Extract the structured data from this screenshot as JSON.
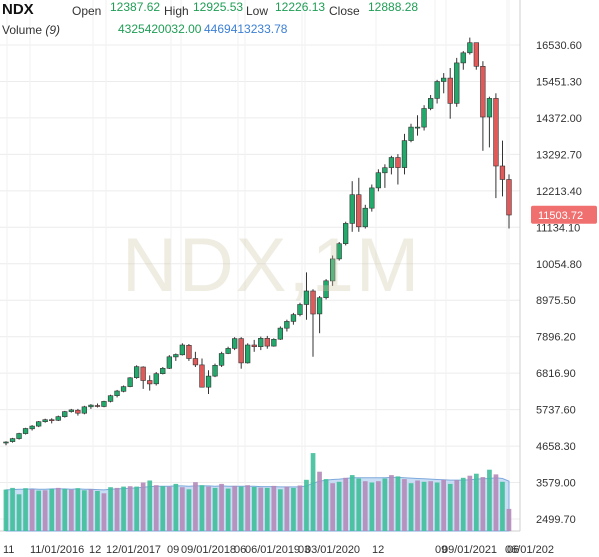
{
  "header": {
    "symbol": "NDX",
    "open_label": "Open",
    "open_value": "12387.62",
    "high_label": "High",
    "high_value": "12925.53",
    "low_label": "Low",
    "low_value": "12226.13",
    "close_label": "Close",
    "close_value": "12888.28",
    "volume_label": "Volume",
    "volume_period": "(9)",
    "volume_value": "4325420032.00",
    "volume_ma_value": "4469413233.78"
  },
  "watermark": "NDX,1M",
  "colors": {
    "up": "#22a96b",
    "down": "#e05a5a",
    "vol_up": "#3fbf9a",
    "vol_down": "#b48ab8",
    "vol_ma_fill": "#b7d3f2",
    "last_price_bg": "#f07070"
  },
  "chart_data": {
    "type": "candlestick",
    "title": "",
    "y_ticks": [
      "16530.60",
      "15451.30",
      "14372.00",
      "13292.70",
      "12213.40",
      "11134.10",
      "10054.80",
      "8975.50",
      "7896.20",
      "6816.90",
      "5737.60",
      "4658.30",
      "3579.00",
      "2499.70"
    ],
    "x_ticks": [
      "11",
      "11/01/2016",
      "12",
      "12/01/2017",
      "09",
      "09/01/2018",
      "06",
      "06/01/2019",
      "03",
      "03/01/2020",
      "12",
      "09",
      "09/01/2021",
      "06",
      "06/01/202"
    ],
    "last_price": "11503.72",
    "ohlc": [
      [
        4750,
        4800,
        4680,
        4780
      ],
      [
        4790,
        4900,
        4760,
        4880
      ],
      [
        4880,
        5050,
        4850,
        5030
      ],
      [
        5030,
        5200,
        5000,
        5180
      ],
      [
        5170,
        5280,
        5120,
        5250
      ],
      [
        5250,
        5400,
        5220,
        5380
      ],
      [
        5380,
        5470,
        5350,
        5440
      ],
      [
        5440,
        5480,
        5330,
        5420
      ],
      [
        5420,
        5560,
        5400,
        5530
      ],
      [
        5530,
        5700,
        5500,
        5680
      ],
      [
        5680,
        5760,
        5650,
        5730
      ],
      [
        5720,
        5760,
        5560,
        5630
      ],
      [
        5630,
        5850,
        5600,
        5820
      ],
      [
        5820,
        5900,
        5760,
        5870
      ],
      [
        5860,
        5920,
        5800,
        5830
      ],
      [
        5830,
        6000,
        5810,
        5980
      ],
      [
        5980,
        6180,
        5950,
        6150
      ],
      [
        6150,
        6320,
        6100,
        6290
      ],
      [
        6280,
        6450,
        6250,
        6420
      ],
      [
        6420,
        6700,
        6400,
        6680
      ],
      [
        6680,
        7050,
        6650,
        7010
      ],
      [
        7000,
        7020,
        6350,
        6600
      ],
      [
        6600,
        6750,
        6300,
        6500
      ],
      [
        6500,
        6850,
        6450,
        6800
      ],
      [
        6800,
        7000,
        6780,
        6960
      ],
      [
        6960,
        7350,
        6940,
        7300
      ],
      [
        7300,
        7400,
        7180,
        7370
      ],
      [
        7360,
        7700,
        7340,
        7650
      ],
      [
        7640,
        7680,
        7180,
        7250
      ],
      [
        7250,
        7450,
        7000,
        7060
      ],
      [
        7060,
        7250,
        6500,
        6400
      ],
      [
        6400,
        6900,
        6200,
        6730
      ],
      [
        6730,
        7100,
        6700,
        7050
      ],
      [
        7050,
        7450,
        7000,
        7400
      ],
      [
        7400,
        7600,
        7380,
        7550
      ],
      [
        7550,
        7880,
        7500,
        7840
      ],
      [
        7840,
        7880,
        6950,
        7120
      ],
      [
        7120,
        7700,
        7100,
        7650
      ],
      [
        7650,
        7800,
        7450,
        7600
      ],
      [
        7600,
        7900,
        7500,
        7850
      ],
      [
        7850,
        7920,
        7540,
        7620
      ],
      [
        7620,
        7850,
        7600,
        7820
      ],
      [
        7820,
        8200,
        7800,
        8150
      ],
      [
        8150,
        8400,
        8050,
        8350
      ],
      [
        8350,
        8600,
        8250,
        8550
      ],
      [
        8550,
        8900,
        8500,
        8850
      ],
      [
        8850,
        9800,
        8400,
        9250
      ],
      [
        9250,
        9300,
        7300,
        8570
      ],
      [
        8570,
        9100,
        8000,
        9050
      ],
      [
        9050,
        9600,
        9000,
        9550
      ],
      [
        9550,
        10300,
        9400,
        10200
      ],
      [
        10200,
        10700,
        10150,
        10650
      ],
      [
        10650,
        11300,
        10600,
        11250
      ],
      [
        11250,
        12500,
        11000,
        12100
      ],
      [
        12100,
        12600,
        11000,
        11150
      ],
      [
        11150,
        11800,
        11100,
        11700
      ],
      [
        11700,
        12400,
        11600,
        12300
      ],
      [
        12300,
        12850,
        12200,
        12750
      ],
      [
        12750,
        13000,
        12300,
        12900
      ],
      [
        12900,
        13250,
        12700,
        13200
      ],
      [
        13200,
        13300,
        12400,
        12900
      ],
      [
        12900,
        13900,
        12700,
        13700
      ],
      [
        13700,
        14200,
        13650,
        14100
      ],
      [
        14100,
        14450,
        13850,
        14100
      ],
      [
        14100,
        14750,
        14000,
        14650
      ],
      [
        14650,
        15050,
        14600,
        14950
      ],
      [
        14950,
        15500,
        14800,
        15450
      ],
      [
        15450,
        15700,
        15100,
        15550
      ],
      [
        15550,
        15850,
        14350,
        14800
      ],
      [
        14800,
        16150,
        14700,
        16000
      ],
      [
        16000,
        16350,
        15800,
        16300
      ],
      [
        16300,
        16750,
        16250,
        16600
      ],
      [
        16600,
        16600,
        15800,
        15900
      ],
      [
        15900,
        16050,
        13400,
        14400
      ],
      [
        14400,
        15000,
        13500,
        14950
      ],
      [
        14950,
        15100,
        12000,
        12950
      ],
      [
        12950,
        13700,
        12050,
        12550
      ],
      [
        12550,
        12700,
        11100,
        11500
      ]
    ],
    "volume": [
      [
        3370,
        1
      ],
      [
        3420,
        1
      ],
      [
        3230,
        1
      ],
      [
        3410,
        1
      ],
      [
        3380,
        0
      ],
      [
        3340,
        1
      ],
      [
        3350,
        0
      ],
      [
        3390,
        1
      ],
      [
        3420,
        0
      ],
      [
        3390,
        1
      ],
      [
        3370,
        0
      ],
      [
        3410,
        1
      ],
      [
        3350,
        1
      ],
      [
        3380,
        0
      ],
      [
        3330,
        1
      ],
      [
        3260,
        0
      ],
      [
        3440,
        1
      ],
      [
        3420,
        0
      ],
      [
        3460,
        1
      ],
      [
        3470,
        0
      ],
      [
        3460,
        1
      ],
      [
        3580,
        0
      ],
      [
        3640,
        1
      ],
      [
        3500,
        0
      ],
      [
        3470,
        1
      ],
      [
        3460,
        0
      ],
      [
        3540,
        1
      ],
      [
        3440,
        0
      ],
      [
        3380,
        1
      ],
      [
        3590,
        0
      ],
      [
        3500,
        1
      ],
      [
        3460,
        0
      ],
      [
        3420,
        1
      ],
      [
        3540,
        0
      ],
      [
        3400,
        1
      ],
      [
        3480,
        0
      ],
      [
        3460,
        1
      ],
      [
        3500,
        0
      ],
      [
        3450,
        1
      ],
      [
        3430,
        0
      ],
      [
        3420,
        1
      ],
      [
        3480,
        0
      ],
      [
        3380,
        1
      ],
      [
        3460,
        0
      ],
      [
        3420,
        1
      ],
      [
        3490,
        0
      ],
      [
        3660,
        1
      ],
      [
        4450,
        1
      ],
      [
        3900,
        0
      ],
      [
        3680,
        1
      ],
      [
        3560,
        0
      ],
      [
        3600,
        1
      ],
      [
        3720,
        0
      ],
      [
        3800,
        1
      ],
      [
        3700,
        1
      ],
      [
        3620,
        0
      ],
      [
        3580,
        1
      ],
      [
        3620,
        0
      ],
      [
        3700,
        1
      ],
      [
        3800,
        0
      ],
      [
        3760,
        1
      ],
      [
        3680,
        0
      ],
      [
        3560,
        1
      ],
      [
        3640,
        0
      ],
      [
        3600,
        1
      ],
      [
        3620,
        0
      ],
      [
        3580,
        1
      ],
      [
        3660,
        0
      ],
      [
        3540,
        1
      ],
      [
        3650,
        0
      ],
      [
        3720,
        1
      ],
      [
        3780,
        0
      ],
      [
        3840,
        1
      ],
      [
        3740,
        0
      ],
      [
        3960,
        1
      ],
      [
        3820,
        0
      ],
      [
        3600,
        1
      ],
      [
        2800,
        0
      ]
    ],
    "volume_ma": [
      3360,
      3370,
      3380,
      3380,
      3390,
      3380,
      3380,
      3390,
      3390,
      3390,
      3380,
      3390,
      3380,
      3380,
      3370,
      3360,
      3380,
      3390,
      3400,
      3410,
      3420,
      3440,
      3460,
      3470,
      3470,
      3470,
      3480,
      3480,
      3470,
      3480,
      3480,
      3480,
      3470,
      3480,
      3470,
      3470,
      3470,
      3470,
      3470,
      3460,
      3460,
      3460,
      3450,
      3450,
      3450,
      3450,
      3480,
      3560,
      3620,
      3650,
      3670,
      3680,
      3700,
      3720,
      3720,
      3720,
      3720,
      3720,
      3720,
      3730,
      3730,
      3720,
      3710,
      3700,
      3690,
      3680,
      3670,
      3660,
      3650,
      3650,
      3650,
      3660,
      3680,
      3690,
      3700,
      3720,
      3700,
      3620
    ]
  }
}
